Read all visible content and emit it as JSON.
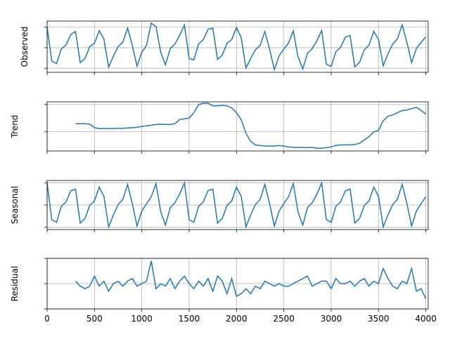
{
  "chart_data": [
    {
      "type": "line",
      "ylabel": "Observed",
      "color": "#1f77b4",
      "grid": true,
      "xlim": [
        0,
        4025
      ],
      "xticks": [
        0,
        500,
        1000,
        1500,
        2000,
        2500,
        3000,
        3500,
        4000
      ],
      "ylim": [
        -1.2,
        1.3
      ],
      "yticks": [
        -1,
        0,
        1
      ],
      "x": [
        0,
        50,
        100,
        150,
        200,
        250,
        300,
        350,
        400,
        450,
        500,
        550,
        600,
        650,
        700,
        750,
        800,
        850,
        900,
        950,
        1000,
        1050,
        1100,
        1150,
        1200,
        1250,
        1300,
        1350,
        1400,
        1450,
        1500,
        1550,
        1600,
        1650,
        1700,
        1750,
        1800,
        1850,
        1900,
        1950,
        2000,
        2050,
        2100,
        2150,
        2200,
        2250,
        2300,
        2350,
        2400,
        2450,
        2500,
        2550,
        2600,
        2650,
        2700,
        2750,
        2800,
        2850,
        2900,
        2950,
        3000,
        3050,
        3100,
        3150,
        3200,
        3250,
        3300,
        3350,
        3400,
        3450,
        3500,
        3550,
        3600,
        3650,
        3700,
        3750,
        3800,
        3850,
        3900,
        3950,
        4000
      ],
      "values": [
        1.0,
        -0.66,
        -0.77,
        -0.06,
        0.14,
        0.64,
        0.79,
        -0.73,
        -0.52,
        0.05,
        0.22,
        0.83,
        0.42,
        -0.95,
        -0.41,
        0.05,
        0.28,
        0.96,
        0.1,
        -0.9,
        -0.22,
        0.12,
        1.2,
        1.03,
        -0.23,
        -0.83,
        -0.05,
        0.18,
        0.6,
        1.11,
        -0.53,
        -0.59,
        0.19,
        0.4,
        0.9,
        0.95,
        -0.57,
        -0.36,
        0.22,
        0.4,
        0.98,
        0.5,
        -0.99,
        -0.53,
        -0.1,
        0.12,
        0.79,
        -0.07,
        -1.07,
        -0.4,
        -0.07,
        0.23,
        0.82,
        -0.44,
        -1.04,
        -0.27,
        -0.04,
        0.34,
        0.84,
        -0.81,
        -0.91,
        -0.19,
        0.02,
        0.52,
        0.59,
        -0.93,
        -0.71,
        -0.1,
        0.13,
        0.8,
        0.4,
        -0.88,
        -0.3,
        0.18,
        0.43,
        1.12,
        0.26,
        -0.73,
        -0.04,
        0.26,
        0.53
      ]
    },
    {
      "type": "line",
      "ylabel": "Trend",
      "color": "#1f77b4",
      "grid": true,
      "xlim": [
        0,
        4025
      ],
      "xticks": [
        0,
        500,
        1000,
        1500,
        2000,
        2500,
        3000,
        3500,
        4000
      ],
      "ylim": [
        -0.7,
        1.1
      ],
      "yticks": [
        0,
        1
      ],
      "x": [
        0,
        50,
        100,
        150,
        200,
        250,
        300,
        350,
        400,
        450,
        500,
        550,
        600,
        650,
        700,
        750,
        800,
        850,
        900,
        950,
        1000,
        1050,
        1100,
        1150,
        1200,
        1250,
        1300,
        1350,
        1400,
        1450,
        1500,
        1550,
        1600,
        1650,
        1700,
        1750,
        1800,
        1850,
        1900,
        1950,
        2000,
        2050,
        2100,
        2150,
        2200,
        2250,
        2300,
        2350,
        2400,
        2450,
        2500,
        2550,
        2600,
        2650,
        2700,
        2750,
        2800,
        2850,
        2900,
        2950,
        3000,
        3050,
        3100,
        3150,
        3200,
        3250,
        3300,
        3350,
        3400,
        3450,
        3500,
        3550,
        3600,
        3650,
        3700,
        3750,
        3800,
        3850,
        3900,
        3950,
        4000
      ],
      "values": [
        null,
        null,
        null,
        null,
        null,
        null,
        0.3,
        0.3,
        0.3,
        0.28,
        0.15,
        0.12,
        0.12,
        0.12,
        0.12,
        0.13,
        0.13,
        0.14,
        0.15,
        0.17,
        0.2,
        0.22,
        0.24,
        0.27,
        0.28,
        0.27,
        0.27,
        0.3,
        0.45,
        0.48,
        0.5,
        0.7,
        1.0,
        1.05,
        1.05,
        0.95,
        0.95,
        0.97,
        0.95,
        0.88,
        0.7,
        0.45,
        -0.05,
        -0.35,
        -0.48,
        -0.5,
        -0.52,
        -0.52,
        -0.52,
        -0.5,
        -0.52,
        -0.55,
        -0.57,
        -0.57,
        -0.57,
        -0.58,
        -0.57,
        -0.6,
        -0.6,
        -0.58,
        -0.55,
        -0.5,
        -0.48,
        -0.48,
        -0.48,
        -0.46,
        -0.42,
        -0.3,
        -0.18,
        0,
        0.05,
        0.4,
        0.57,
        0.62,
        0.7,
        0.78,
        0.8,
        0.85,
        0.9,
        0.78,
        0.65
      ]
    },
    {
      "type": "line",
      "ylabel": "Seasonal",
      "color": "#1f77b4",
      "grid": true,
      "xlim": [
        0,
        4025
      ],
      "xticks": [
        0,
        500,
        1000,
        1500,
        2000,
        2500,
        3000,
        3500,
        4000
      ],
      "ylim": [
        -1.1,
        1.1
      ],
      "yticks": [
        -1,
        0,
        1
      ],
      "x": [
        0,
        50,
        100,
        150,
        200,
        250,
        300,
        350,
        400,
        450,
        500,
        550,
        600,
        650,
        700,
        750,
        800,
        850,
        900,
        950,
        1000,
        1050,
        1100,
        1150,
        1200,
        1250,
        1300,
        1350,
        1400,
        1450,
        1500,
        1550,
        1600,
        1650,
        1700,
        1750,
        1800,
        1850,
        1900,
        1950,
        2000,
        2050,
        2100,
        2150,
        2200,
        2250,
        2300,
        2350,
        2400,
        2450,
        2500,
        2550,
        2600,
        2650,
        2700,
        2750,
        2800,
        2850,
        2900,
        2950,
        3000,
        3050,
        3100,
        3150,
        3200,
        3250,
        3300,
        3350,
        3400,
        3450,
        3500,
        3550,
        3600,
        3650,
        3700,
        3750,
        3800,
        3850,
        3900,
        3950,
        4000
      ],
      "values": [
        0.99,
        -0.66,
        -0.77,
        -0.06,
        0.14,
        0.64,
        0.71,
        -0.81,
        -0.6,
        -0.02,
        0.18,
        0.8,
        0.39,
        -0.98,
        -0.44,
        0.02,
        0.25,
        0.92,
        0.06,
        -0.94,
        -0.27,
        0.06,
        0.37,
        0.96,
        -0.3,
        -0.9,
        -0.12,
        0.1,
        0.49,
        0.99,
        -0.66,
        -0.77,
        -0.06,
        0.14,
        0.64,
        0.71,
        -0.81,
        -0.6,
        -0.02,
        0.18,
        0.8,
        0.39,
        -0.98,
        -0.44,
        0.02,
        0.25,
        0.92,
        0.06,
        -0.94,
        -0.27,
        0.06,
        0.37,
        0.96,
        -0.3,
        -0.9,
        -0.12,
        0.1,
        0.49,
        0.99,
        -0.66,
        -0.77,
        -0.06,
        0.14,
        0.64,
        0.71,
        -0.81,
        -0.6,
        -0.02,
        0.18,
        0.8,
        0.39,
        -0.98,
        -0.44,
        0.02,
        0.25,
        0.92,
        0.06,
        -0.94,
        -0.27,
        0.06,
        0.37
      ]
    },
    {
      "type": "line",
      "ylabel": "Residual",
      "color": "#1f77b4",
      "grid": true,
      "xlim": [
        0,
        4025
      ],
      "xticks": [
        0,
        500,
        1000,
        1500,
        2000,
        2500,
        3000,
        3500,
        4000
      ],
      "ylim": [
        -1,
        1
      ],
      "yticks": [
        -1,
        0,
        1
      ],
      "x": [
        0,
        50,
        100,
        150,
        200,
        250,
        300,
        350,
        400,
        450,
        500,
        550,
        600,
        650,
        700,
        750,
        800,
        850,
        900,
        950,
        1000,
        1050,
        1100,
        1150,
        1200,
        1250,
        1300,
        1350,
        1400,
        1450,
        1500,
        1550,
        1600,
        1650,
        1700,
        1750,
        1800,
        1850,
        1900,
        1950,
        2000,
        2050,
        2100,
        2150,
        2200,
        2250,
        2300,
        2350,
        2400,
        2450,
        2500,
        2550,
        2600,
        2650,
        2700,
        2750,
        2800,
        2850,
        2900,
        2950,
        3000,
        3050,
        3100,
        3150,
        3200,
        3250,
        3300,
        3350,
        3400,
        3450,
        3500,
        3550,
        3600,
        3650,
        3700,
        3750,
        3800,
        3850,
        3900,
        3950,
        4000
      ],
      "values": [
        null,
        null,
        null,
        null,
        null,
        null,
        0.1,
        -0.1,
        -0.2,
        -0.1,
        0.3,
        -0.1,
        0.1,
        -0.3,
        0,
        0.1,
        -0.1,
        0.1,
        0.2,
        -0.1,
        0,
        0.1,
        0.9,
        -0.2,
        0,
        -0.1,
        0.2,
        -0.2,
        0.1,
        0.3,
        0,
        -0.2,
        0.1,
        -0.1,
        0.2,
        -0.3,
        0.3,
        0.1,
        -0.4,
        0.2,
        -0.5,
        -0.4,
        -0.2,
        -0.4,
        -0.1,
        -0.2,
        0.1,
        0,
        -0.1,
        0,
        -0.1,
        -0.1,
        0,
        0.1,
        0.2,
        0.3,
        -0.1,
        0,
        0.1,
        0.1,
        -0.2,
        0.2,
        0,
        0,
        0.1,
        -0.1,
        0.1,
        0.2,
        -0.1,
        0.1,
        0,
        0.6,
        0.2,
        -0.1,
        -0.2,
        0.1,
        0,
        0.6,
        -0.3,
        -0.2,
        -0.6
      ]
    }
  ]
}
